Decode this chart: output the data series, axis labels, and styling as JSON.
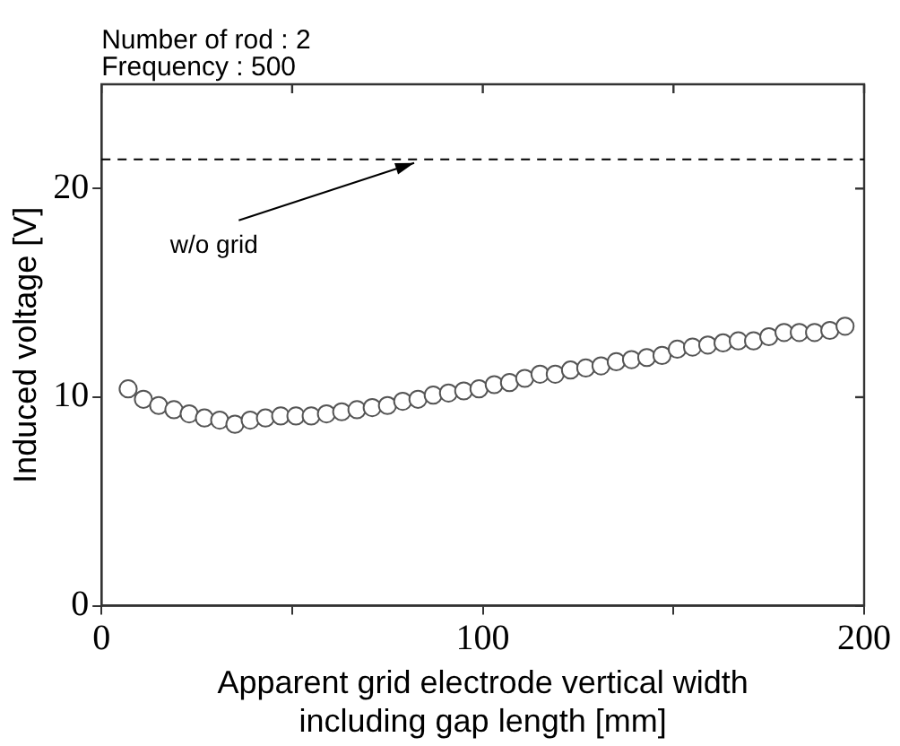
{
  "chart_data": {
    "type": "scatter",
    "title": "Number of rod : 2",
    "subtitle": "Frequency : 500",
    "xlabel": "Apparent grid electrode vertical width including gap length [mm]",
    "ylabel": "Induced voltage [V]",
    "x": [
      7,
      11,
      15,
      19,
      23,
      27,
      31,
      35,
      39,
      43,
      47,
      51,
      55,
      59,
      63,
      67,
      71,
      75,
      79,
      83,
      87,
      91,
      95,
      99,
      103,
      107,
      111,
      115,
      119,
      123,
      127,
      131,
      135,
      139,
      143,
      147,
      151,
      155,
      159,
      163,
      167,
      171,
      175,
      179,
      183,
      187,
      191,
      195
    ],
    "series": [
      {
        "color": "#555555",
        "values": [
          10.4,
          9.9,
          9.6,
          9.4,
          9.2,
          9.0,
          8.9,
          8.7,
          8.9,
          9.0,
          9.1,
          9.1,
          9.1,
          9.2,
          9.3,
          9.4,
          9.5,
          9.6,
          9.8,
          9.9,
          10.1,
          10.2,
          10.3,
          10.4,
          10.6,
          10.7,
          10.9,
          11.1,
          11.1,
          11.3,
          11.4,
          11.5,
          11.7,
          11.8,
          11.9,
          12.0,
          12.3,
          12.4,
          12.5,
          12.6,
          12.7,
          12.7,
          12.9,
          13.1,
          13.1,
          13.1,
          13.2,
          13.4
        ]
      }
    ],
    "marker": "circle",
    "xlim": [
      0,
      200
    ],
    "xticks": [
      0,
      {
        "value": 50,
        "label": null
      },
      100,
      {
        "value": 150,
        "label": null
      },
      200
    ],
    "ylim": [
      0,
      25
    ],
    "yticks": [
      0,
      10,
      20
    ],
    "ref_lines": [
      {
        "axis": "y",
        "value": 21.4,
        "label": "w/o grid",
        "line_style": "dashed",
        "color": "#000000"
      }
    ]
  }
}
